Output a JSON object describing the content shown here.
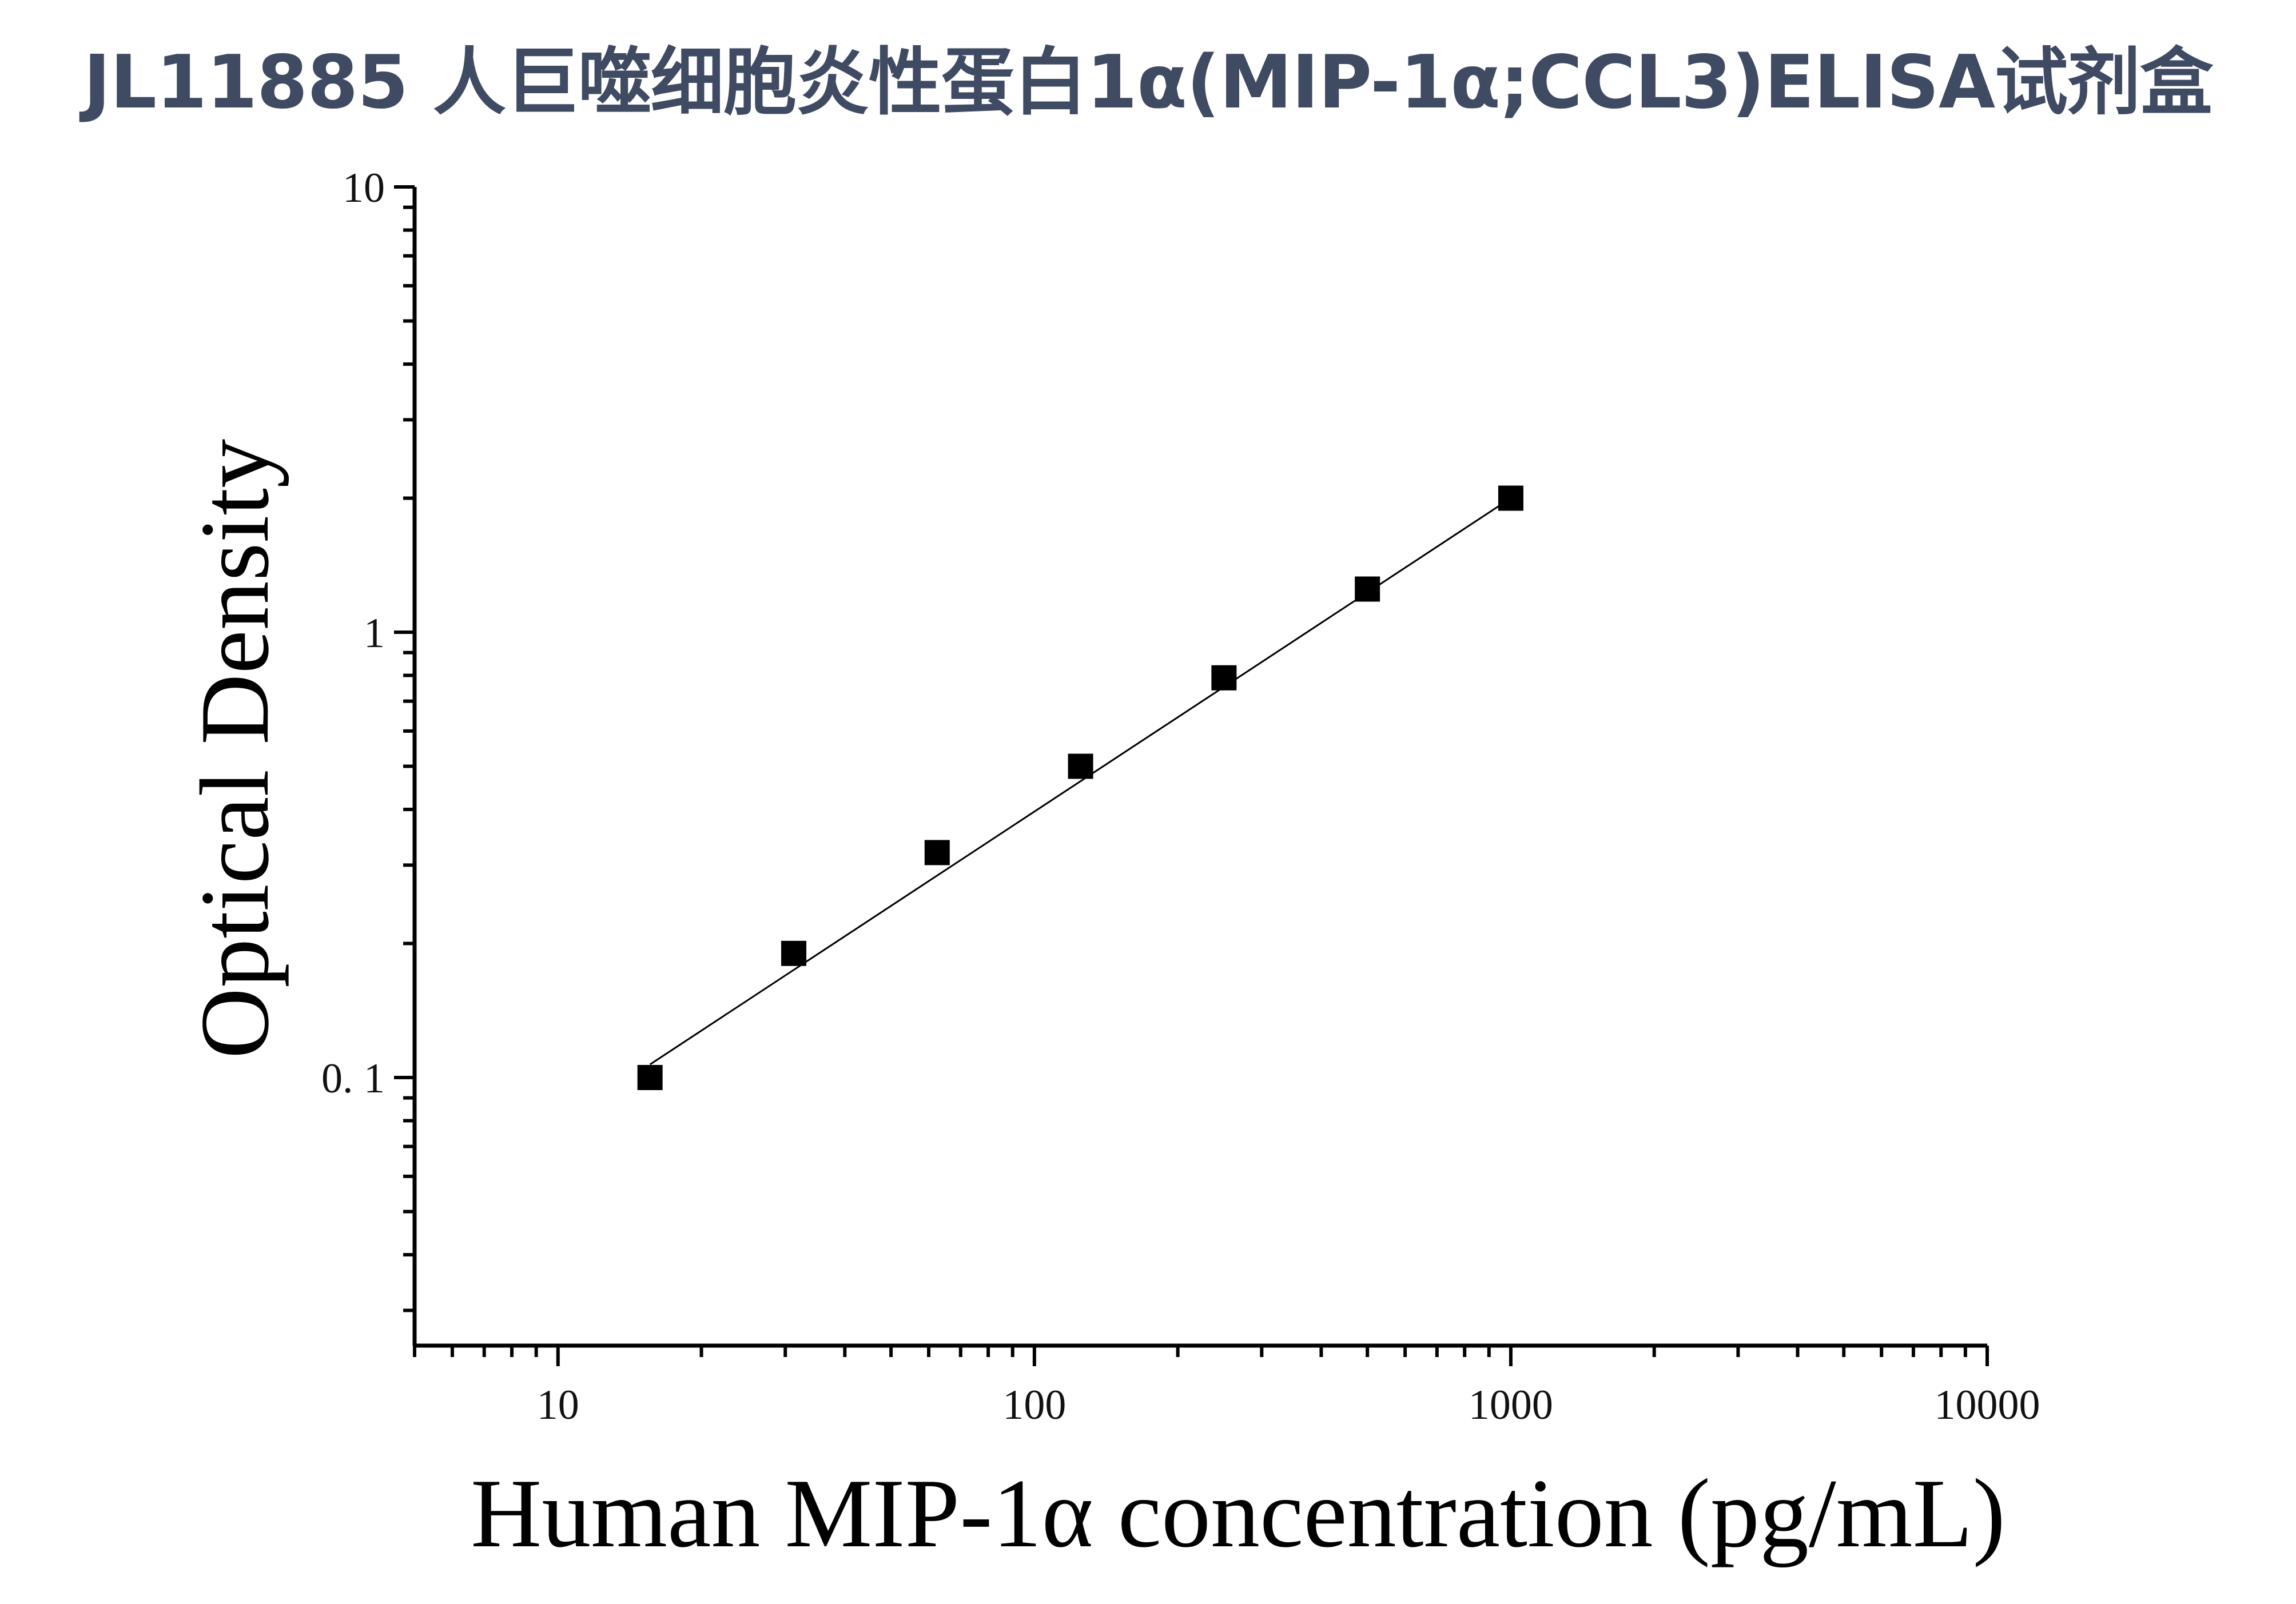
{
  "chart_data": {
    "type": "scatter",
    "title": "JL11885 人巨噬细胞炎性蛋白1α(MIP-1α;CCL3)ELISA试剂盒",
    "xlabel": "Human MIP-1α concentration (pg/mL)",
    "ylabel": "Optical Density",
    "xscale": "log",
    "yscale": "log",
    "xlim": [
      5,
      10000
    ],
    "ylim": [
      0.025,
      10
    ],
    "x_ticks": [
      {
        "value": 10,
        "label": "10"
      },
      {
        "value": 100,
        "label": "100"
      },
      {
        "value": 1000,
        "label": "1000"
      },
      {
        "value": 10000,
        "label": "10000"
      }
    ],
    "y_ticks": [
      {
        "value": 0.1,
        "label": "0. 1"
      },
      {
        "value": 1,
        "label": "1"
      },
      {
        "value": 10,
        "label": "10"
      }
    ],
    "series": [
      {
        "marker": "square",
        "color": "#000000",
        "x": [
          15.6,
          31.25,
          62.5,
          125,
          250,
          500,
          1000
        ],
        "y": [
          0.1,
          0.19,
          0.32,
          0.5,
          0.79,
          1.25,
          2.0
        ]
      }
    ],
    "fit_line": {
      "color": "#000000",
      "x": [
        15.6,
        1000
      ],
      "y": [
        0.107,
        2.0
      ]
    },
    "grid": false,
    "legend": "none"
  }
}
